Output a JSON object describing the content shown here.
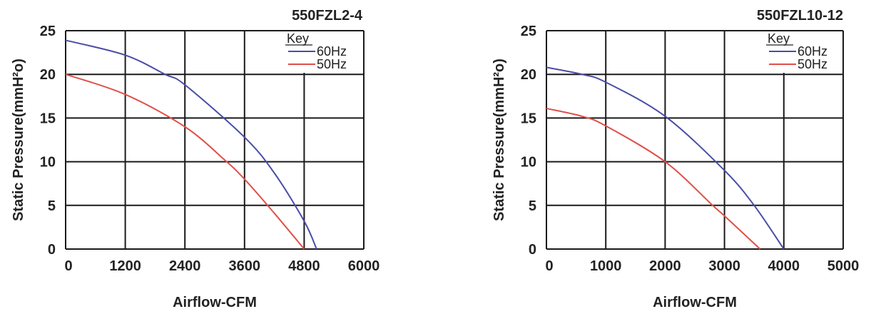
{
  "chart_data": [
    {
      "type": "line",
      "title": "550FZL2-4",
      "xlabel": "Airflow-CFM",
      "ylabel": "Static Pressure(mmH²o)",
      "xlim": [
        0,
        6000
      ],
      "ylim": [
        0,
        25
      ],
      "xticks": [
        "0",
        "1200",
        "2400",
        "3600",
        "4800",
        "6000"
      ],
      "yticks": [
        "0",
        "5",
        "10",
        "15",
        "20",
        "25"
      ],
      "grid": true,
      "legend": {
        "title": "Key",
        "position": "top-right"
      },
      "series": [
        {
          "name": "60Hz",
          "color": "#4a4ca8",
          "x": [
            0,
            1200,
            2000,
            2400,
            3600,
            4200,
            4800,
            5050
          ],
          "y": [
            23.9,
            22.2,
            20.0,
            18.8,
            12.8,
            8.7,
            3.2,
            0
          ]
        },
        {
          "name": "50Hz",
          "color": "#e0504a",
          "x": [
            0,
            1200,
            2400,
            3200,
            3600,
            4200,
            4800
          ],
          "y": [
            20.0,
            17.7,
            14.0,
            10.2,
            8.0,
            4.1,
            0
          ]
        }
      ]
    },
    {
      "type": "line",
      "title": "550FZL10-12",
      "xlabel": "Airflow-CFM",
      "ylabel": "Static Pressure(mmH²o)",
      "xlim": [
        0,
        5000
      ],
      "ylim": [
        0,
        25
      ],
      "xticks": [
        "0",
        "1000",
        "2000",
        "3000",
        "4000",
        "5000"
      ],
      "yticks": [
        "0",
        "5",
        "10",
        "15",
        "20",
        "25"
      ],
      "grid": true,
      "legend": {
        "title": "Key",
        "position": "top-right"
      },
      "series": [
        {
          "name": "60Hz",
          "color": "#4a4ca8",
          "x": [
            0,
            600,
            1000,
            2000,
            3000,
            3500,
            4000
          ],
          "y": [
            20.8,
            20.0,
            19.1,
            15.2,
            9.0,
            5.0,
            0
          ]
        },
        {
          "name": "50Hz",
          "color": "#e0504a",
          "x": [
            0,
            600,
            1000,
            2000,
            2800,
            3000,
            3600
          ],
          "y": [
            16.1,
            15.2,
            14.1,
            10.0,
            5.0,
            3.8,
            0
          ]
        }
      ]
    }
  ]
}
